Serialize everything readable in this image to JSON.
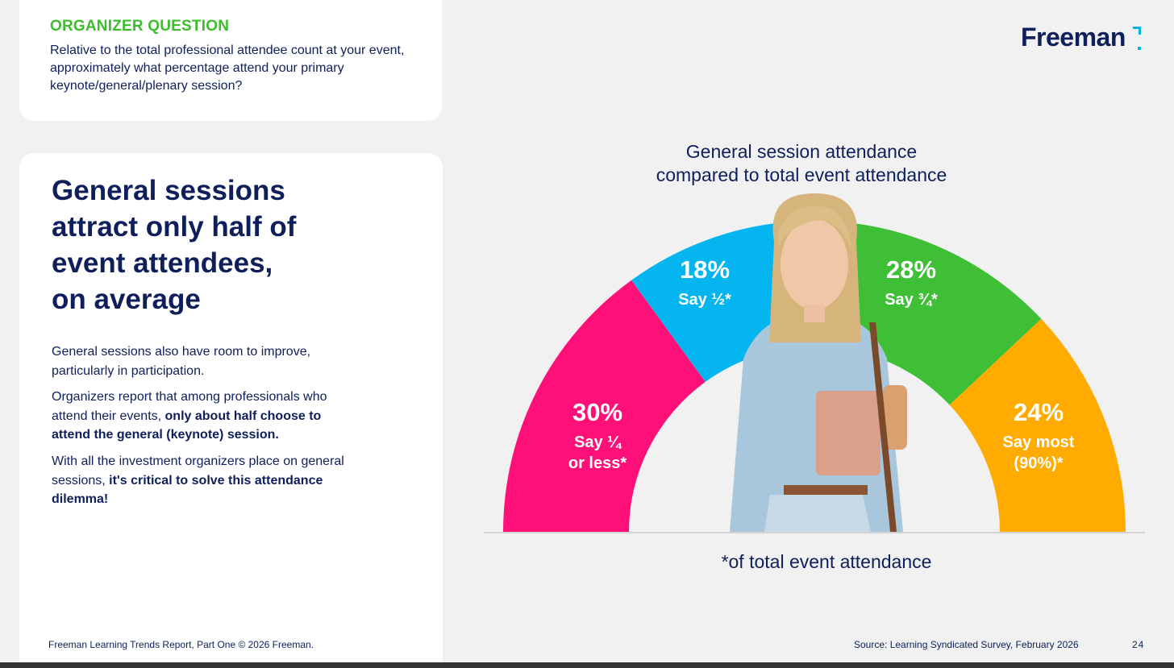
{
  "question": {
    "label": "ORGANIZER QUESTION",
    "text": "Relative to the total professional attendee count at your event, approximately what percentage attend your primary keynote/general/plenary session?"
  },
  "headline": {
    "line1": "General sessions",
    "line2": "attract only half of",
    "line3": "event attendees,",
    "line4": "on average"
  },
  "body": {
    "p1": "General sessions also have room to improve, particularly in participation.",
    "p2_plain": "Organizers report that among professionals who attend their events, ",
    "p2_bold": "only about half choose to attend the general (keynote) session.",
    "p3_plain": "With all the investment organizers place on general sessions, ",
    "p3_bold": "it's critical to solve this attendance dilemma!"
  },
  "logo": {
    "text": "Freeman"
  },
  "footer": {
    "left": "Freeman Learning Trends Report, Part One © 2026 Freeman.",
    "source": "Source: Learning Syndicated Survey, February 2026",
    "page": "24"
  },
  "chart_data": {
    "type": "pie",
    "title_line1": "General session attendance",
    "title_line2": "compared to total event attendance",
    "note": "*of total event attendance",
    "segments": [
      {
        "label_line1": "Say ¼",
        "label_line2": "or less*",
        "value": 30,
        "value_label": "30%",
        "color": "#ff0f78"
      },
      {
        "label_line1": "Say ½*",
        "label_line2": "",
        "value": 18,
        "value_label": "18%",
        "color": "#05b5f0"
      },
      {
        "label_line1": "Say ¾*",
        "label_line2": "",
        "value": 28,
        "value_label": "28%",
        "color": "#3fbf35"
      },
      {
        "label_line1": "Say most",
        "label_line2": "(90%)*",
        "value": 24,
        "value_label": "24%",
        "color": "#ffab00"
      }
    ]
  }
}
